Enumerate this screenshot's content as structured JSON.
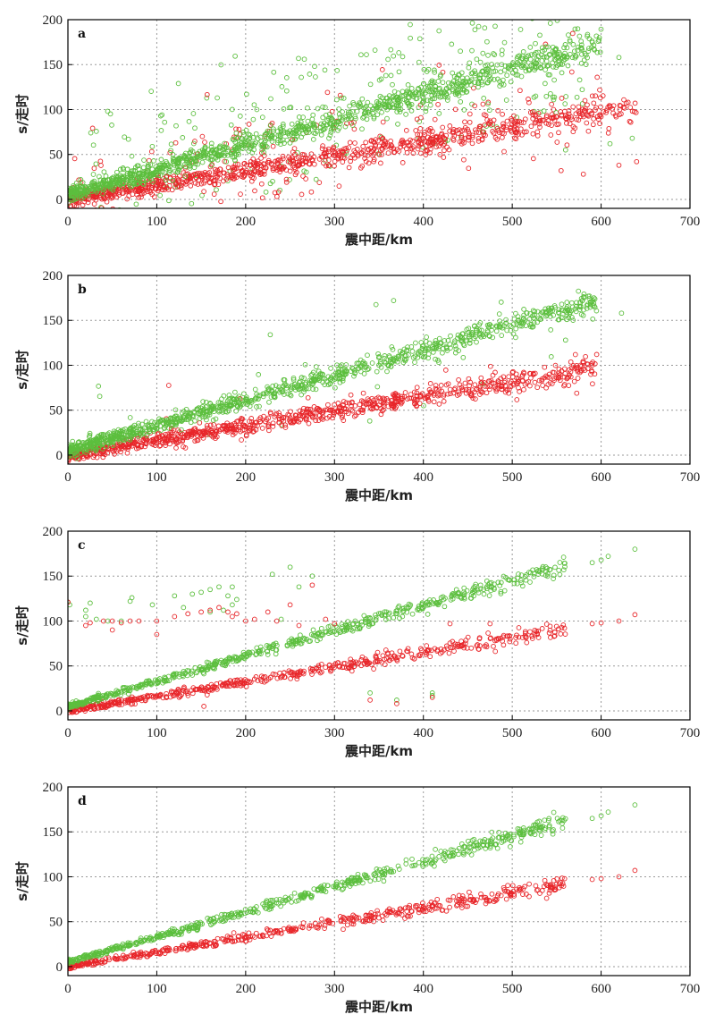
{
  "colors": {
    "p_wave": "#5cbf3e",
    "s_wave": "#e8262a",
    "grid": "#9a9a9a",
    "axis": "#000000"
  },
  "chart_data": [
    {
      "type": "scatter",
      "panel_label": "a",
      "xlabel": "震中距/km",
      "ylabel": "s/走时",
      "xlim": [
        0,
        700
      ],
      "ylim": [
        -10,
        200
      ],
      "xticks": [
        0,
        100,
        200,
        300,
        400,
        500,
        600,
        700
      ],
      "yticks": [
        0,
        50,
        100,
        150,
        200
      ],
      "grid": true,
      "noise": "high",
      "series": [
        {
          "color": "#5cbf3e",
          "slope": 0.28,
          "intercept": 5,
          "x_max": 600,
          "ends": [
            [
              620,
              158
            ],
            [
              635,
              68
            ],
            [
              610,
              62
            ],
            [
              598,
              180
            ],
            [
              560,
              55
            ]
          ]
        },
        {
          "color": "#e8262a",
          "slope": 0.163,
          "intercept": 0,
          "x_max": 640,
          "ends": [
            [
              640,
              42
            ],
            [
              620,
              38
            ],
            [
              580,
              28
            ],
            [
              600,
              92
            ],
            [
              555,
              32
            ]
          ]
        }
      ]
    },
    {
      "type": "scatter",
      "panel_label": "b",
      "xlabel": "震中距/km",
      "ylabel": "s/走时",
      "xlim": [
        0,
        700
      ],
      "ylim": [
        -10,
        200
      ],
      "xticks": [
        0,
        100,
        200,
        300,
        400,
        500,
        600,
        700
      ],
      "yticks": [
        0,
        50,
        100,
        150,
        200
      ],
      "grid": true,
      "noise": "medium",
      "series": [
        {
          "color": "#5cbf3e",
          "slope": 0.28,
          "intercept": 5,
          "x_max": 595,
          "ends": [
            [
              623,
              158
            ],
            [
              592,
              175
            ],
            [
              585,
              168
            ],
            [
              560,
              128
            ]
          ]
        },
        {
          "color": "#e8262a",
          "slope": 0.163,
          "intercept": 0,
          "x_max": 595,
          "ends": [
            [
              595,
              112
            ],
            [
              590,
              100
            ],
            [
              580,
              96
            ],
            [
              570,
              82
            ]
          ]
        }
      ]
    },
    {
      "type": "scatter",
      "panel_label": "c",
      "xlabel": "震中距/km",
      "ylabel": "s/走时",
      "xlim": [
        0,
        700
      ],
      "ylim": [
        -10,
        200
      ],
      "xticks": [
        0,
        100,
        200,
        300,
        400,
        500,
        600,
        700
      ],
      "yticks": [
        0,
        50,
        100,
        150,
        200
      ],
      "grid": true,
      "noise": "low",
      "series": [
        {
          "color": "#5cbf3e",
          "slope": 0.28,
          "intercept": 5,
          "x_max": 560,
          "ends": [
            [
              590,
              165
            ],
            [
              600,
              168
            ],
            [
              608,
              172
            ],
            [
              638,
              180
            ]
          ]
        },
        {
          "color": "#e8262a",
          "slope": 0.163,
          "intercept": 0,
          "x_max": 560,
          "ends": [
            [
              590,
              97
            ],
            [
              600,
              98
            ],
            [
              620,
              100
            ],
            [
              638,
              107
            ]
          ]
        }
      ],
      "outliers": [
        [
          0,
          121,
          "g"
        ],
        [
          2,
          118,
          "g"
        ],
        [
          20,
          112,
          "g"
        ],
        [
          25,
          120,
          "g"
        ],
        [
          20,
          105,
          "g"
        ],
        [
          32,
          102,
          "g"
        ],
        [
          45,
          100,
          "g"
        ],
        [
          60,
          100,
          "g"
        ],
        [
          70,
          122,
          "g"
        ],
        [
          72,
          126,
          "g"
        ],
        [
          95,
          118,
          "g"
        ],
        [
          120,
          128,
          "g"
        ],
        [
          140,
          130,
          "g"
        ],
        [
          150,
          132,
          "g"
        ],
        [
          160,
          135,
          "g"
        ],
        [
          170,
          138,
          "g"
        ],
        [
          180,
          128,
          "g"
        ],
        [
          185,
          118,
          "g"
        ],
        [
          190,
          124,
          "g"
        ],
        [
          230,
          152,
          "g"
        ],
        [
          250,
          160,
          "g"
        ],
        [
          260,
          138,
          "g"
        ],
        [
          275,
          150,
          "g"
        ],
        [
          160,
          110,
          "g"
        ],
        [
          175,
          112,
          "g"
        ],
        [
          185,
          138,
          "g"
        ],
        [
          340,
          20,
          "g"
        ],
        [
          370,
          12,
          "g"
        ],
        [
          410,
          20,
          "g"
        ],
        [
          410,
          17,
          "g"
        ],
        [
          240,
          102,
          "g"
        ],
        [
          130,
          115,
          "g"
        ],
        [
          0,
          121,
          "r"
        ],
        [
          20,
          95,
          "r"
        ],
        [
          25,
          98,
          "r"
        ],
        [
          40,
          100,
          "r"
        ],
        [
          50,
          100,
          "r"
        ],
        [
          60,
          98,
          "r"
        ],
        [
          80,
          100,
          "r"
        ],
        [
          100,
          100,
          "r"
        ],
        [
          120,
          105,
          "r"
        ],
        [
          135,
          108,
          "r"
        ],
        [
          150,
          110,
          "r"
        ],
        [
          160,
          112,
          "r"
        ],
        [
          170,
          115,
          "r"
        ],
        [
          180,
          110,
          "r"
        ],
        [
          185,
          105,
          "r"
        ],
        [
          190,
          108,
          "r"
        ],
        [
          200,
          100,
          "r"
        ],
        [
          210,
          102,
          "r"
        ],
        [
          225,
          110,
          "r"
        ],
        [
          250,
          118,
          "r"
        ],
        [
          260,
          95,
          "r"
        ],
        [
          275,
          140,
          "r"
        ],
        [
          290,
          102,
          "r"
        ],
        [
          300,
          97,
          "r"
        ],
        [
          340,
          12,
          "r"
        ],
        [
          370,
          8,
          "r"
        ],
        [
          410,
          15,
          "r"
        ],
        [
          430,
          97,
          "r"
        ],
        [
          475,
          97,
          "r"
        ],
        [
          520,
          88,
          "r"
        ],
        [
          50,
          90,
          "r"
        ],
        [
          70,
          100,
          "r"
        ],
        [
          100,
          85,
          "r"
        ],
        [
          235,
          100,
          "r"
        ],
        [
          153,
          5,
          "r"
        ]
      ]
    },
    {
      "type": "scatter",
      "panel_label": "d",
      "xlabel": "震中距/km",
      "ylabel": "s/走时",
      "xlim": [
        0,
        700
      ],
      "ylim": [
        -10,
        200
      ],
      "xticks": [
        0,
        100,
        200,
        300,
        400,
        500,
        600,
        700
      ],
      "yticks": [
        0,
        50,
        100,
        150,
        200
      ],
      "grid": true,
      "noise": "very-low",
      "series": [
        {
          "color": "#5cbf3e",
          "slope": 0.28,
          "intercept": 5,
          "x_max": 560,
          "ends": [
            [
              590,
              165
            ],
            [
              600,
              168
            ],
            [
              608,
              172
            ],
            [
              638,
              180
            ]
          ]
        },
        {
          "color": "#e8262a",
          "slope": 0.163,
          "intercept": 0,
          "x_max": 560,
          "ends": [
            [
              590,
              97
            ],
            [
              600,
              98
            ],
            [
              620,
              100
            ],
            [
              638,
              107
            ]
          ]
        }
      ]
    }
  ]
}
